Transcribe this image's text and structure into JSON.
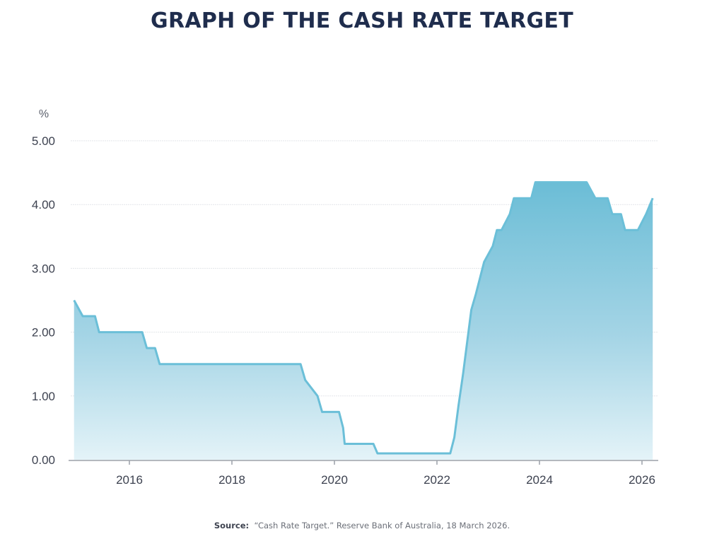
{
  "chart_data": {
    "type": "area",
    "title": "GRAPH OF THE CASH RATE TARGET",
    "ylabel": "%",
    "xlabel": "",
    "ylim": [
      0,
      5
    ],
    "xlim": [
      2014.9,
      2026.25
    ],
    "yticks": [
      "0.00",
      "1.00",
      "2.00",
      "3.00",
      "4.00",
      "5.00"
    ],
    "ytick_values": [
      0,
      1,
      2,
      3,
      4,
      5
    ],
    "xticks": [
      "2016",
      "2018",
      "2020",
      "2022",
      "2024",
      "2026"
    ],
    "xtick_values": [
      2016,
      2018,
      2020,
      2022,
      2024,
      2026
    ],
    "grid": true,
    "legend": "none",
    "series": [
      {
        "name": "Cash Rate Target",
        "color": "#6bbfd8",
        "x": [
          2014.92,
          2015.09,
          2015.17,
          2015.33,
          2015.41,
          2016.25,
          2016.34,
          2016.5,
          2016.59,
          2019.34,
          2019.43,
          2019.67,
          2019.76,
          2020.09,
          2020.17,
          2020.2,
          2020.25,
          2020.76,
          2020.84,
          2022.26,
          2022.34,
          2022.42,
          2022.51,
          2022.59,
          2022.67,
          2022.76,
          2022.92,
          2023.09,
          2023.17,
          2023.26,
          2023.42,
          2023.5,
          2023.84,
          2023.92,
          2024.92,
          2025.09,
          2025.17,
          2025.33,
          2025.42,
          2025.59,
          2025.67,
          2025.92,
          2026.08,
          2026.21
        ],
        "values": [
          2.5,
          2.25,
          2.25,
          2.25,
          2.0,
          2.0,
          1.75,
          1.75,
          1.5,
          1.5,
          1.25,
          1.0,
          0.75,
          0.75,
          0.5,
          0.25,
          0.25,
          0.25,
          0.1,
          0.1,
          0.35,
          0.85,
          1.35,
          1.85,
          2.35,
          2.6,
          3.1,
          3.35,
          3.6,
          3.6,
          3.85,
          4.1,
          4.1,
          4.35,
          4.35,
          4.1,
          4.1,
          4.1,
          3.85,
          3.85,
          3.6,
          3.6,
          3.85,
          4.1
        ]
      }
    ]
  },
  "source": {
    "label": "Source:",
    "text": "“Cash Rate Target.” Reserve Bank of Australia, 18 March 2026."
  }
}
